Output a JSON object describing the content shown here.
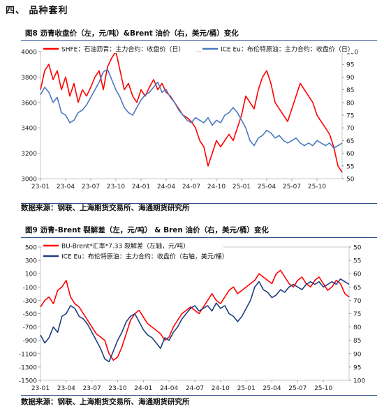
{
  "section_title": "四、 品种套利",
  "chart_data": [
    {
      "type": "line",
      "title": "图8  沥青收盘价（左，元/吨）&Brent 油价（右，美元/桶）变化",
      "source": "数据来源：钢联、上海期货交易所、海通期货研究所",
      "x_ticks": [
        "23-01",
        "23-04",
        "23-07",
        "23-10",
        "24-01",
        "24-04",
        "24-07",
        "24-10",
        "25-01",
        "25-04",
        "25-07",
        "25-10"
      ],
      "y_left": {
        "min": 3000,
        "max": 4000,
        "ticks": [
          3000,
          3200,
          3400,
          3600,
          3800,
          4000
        ]
      },
      "y_right": {
        "min": 50,
        "max": 100,
        "ticks": [
          50,
          55,
          60,
          65,
          70,
          75,
          80,
          85,
          90,
          95,
          100
        ]
      },
      "series": [
        {
          "name": "SHFE：石油沥青：主力合约：收盘价（日）",
          "axis": "left",
          "color": "#ff0000",
          "x": [
            0,
            0.5,
            1,
            1.5,
            2,
            2.5,
            3,
            3.5,
            4,
            4.5,
            5,
            5.5,
            6,
            6.5,
            7,
            7.5,
            8,
            8.5,
            9,
            9.5,
            10,
            10.5,
            11,
            11.5,
            12,
            12.5,
            13,
            13.5,
            14,
            14.5,
            15,
            15.5,
            16,
            16.5,
            17,
            17.5,
            18,
            18.5,
            19,
            19.5,
            20,
            20.5,
            21,
            21.5,
            22,
            22.5,
            23,
            23.5,
            24,
            24.5,
            25,
            25.5,
            26,
            26.5,
            27,
            27.5,
            28,
            28.5,
            29,
            29.5,
            30,
            30.5,
            31,
            31.5,
            32,
            32.5,
            33,
            33.5,
            34,
            34.5,
            35,
            35.5,
            36
          ],
          "values": [
            3700,
            3850,
            3900,
            3780,
            3850,
            3700,
            3800,
            3650,
            3750,
            3600,
            3700,
            3650,
            3720,
            3800,
            3850,
            3700,
            3880,
            3950,
            4000,
            3850,
            3700,
            3750,
            3650,
            3600,
            3700,
            3650,
            3720,
            3780,
            3700,
            3750,
            3680,
            3650,
            3600,
            3550,
            3500,
            3480,
            3450,
            3400,
            3300,
            3250,
            3100,
            3200,
            3300,
            3250,
            3300,
            3350,
            3300,
            3400,
            3500,
            3650,
            3600,
            3550,
            3700,
            3800,
            3850,
            3750,
            3600,
            3550,
            3500,
            3450,
            3550,
            3650,
            3750,
            3700,
            3650,
            3600,
            3500,
            3450,
            3400,
            3350,
            3250,
            3100,
            3050
          ]
        },
        {
          "name": "ICE Eu：布伦特原油：主力合约：收盘价（日）",
          "axis": "right",
          "color": "#4a78c0",
          "x": [
            0,
            0.5,
            1,
            1.5,
            2,
            2.5,
            3,
            3.5,
            4,
            4.5,
            5,
            5.5,
            6,
            6.5,
            7,
            7.5,
            8,
            8.5,
            9,
            9.5,
            10,
            10.5,
            11,
            11.5,
            12,
            12.5,
            13,
            13.5,
            14,
            14.5,
            15,
            15.5,
            16,
            16.5,
            17,
            17.5,
            18,
            18.5,
            19,
            19.5,
            20,
            20.5,
            21,
            21.5,
            22,
            22.5,
            23,
            23.5,
            24,
            24.5,
            25,
            25.5,
            26,
            26.5,
            27,
            27.5,
            28,
            28.5,
            29,
            29.5,
            30,
            30.5,
            31,
            31.5,
            32,
            32.5,
            33,
            33.5,
            34,
            34.5,
            35,
            35.5,
            36
          ],
          "values": [
            83,
            86,
            84,
            80,
            82,
            76,
            75,
            72,
            73,
            76,
            77,
            79,
            82,
            85,
            88,
            92,
            93,
            89,
            85,
            82,
            78,
            76,
            75,
            78,
            81,
            83,
            84,
            86,
            88,
            84,
            85,
            82,
            80,
            77,
            75,
            73,
            72,
            74,
            73,
            72,
            74,
            71,
            73,
            72,
            75,
            76,
            78,
            76,
            73,
            70,
            65,
            63,
            66,
            67,
            69,
            68,
            66,
            67,
            65,
            64,
            65,
            66,
            64,
            63,
            64,
            63,
            65,
            64,
            63,
            64,
            62,
            63,
            64
          ]
        }
      ]
    },
    {
      "type": "line",
      "title": "图9  沥青-Brent 裂解差（左，元/吨） & Bren 油价（右，美元/桶）变化",
      "source": "数据来源：钢联、上海期货交易所、海通期货研究所",
      "x_ticks": [
        "23-01",
        "23-04",
        "23-07",
        "23-10",
        "24-01",
        "24-04",
        "24-07",
        "24-10",
        "25-01",
        "25-04",
        "25-07",
        "25-10"
      ],
      "y_left": {
        "min": -1500,
        "max": 500,
        "ticks": [
          -1500,
          -1300,
          -1100,
          -900,
          -700,
          -500,
          -300,
          -100,
          100,
          300,
          500
        ]
      },
      "y_right": {
        "min": 50,
        "max": 100,
        "ticks": [
          50,
          55,
          60,
          65,
          70,
          75,
          80,
          85,
          90,
          95,
          100
        ],
        "reversed": true
      },
      "series": [
        {
          "name": "BU-Brent*汇率*7.33 裂解差（左轴，元/吨）",
          "axis": "left",
          "color": "#ff0000",
          "x": [
            0,
            0.5,
            1,
            1.5,
            2,
            2.5,
            3,
            3.5,
            4,
            4.5,
            5,
            5.5,
            6,
            6.5,
            7,
            7.5,
            8,
            8.5,
            9,
            9.5,
            10,
            10.5,
            11,
            11.5,
            12,
            12.5,
            13,
            13.5,
            14,
            14.5,
            15,
            15.5,
            16,
            16.5,
            17,
            17.5,
            18,
            18.5,
            19,
            19.5,
            20,
            20.5,
            21,
            21.5,
            22,
            22.5,
            23,
            23.5,
            24,
            24.5,
            25,
            25.5,
            26,
            26.5,
            27,
            27.5,
            28,
            28.5,
            29,
            29.5,
            30,
            30.5,
            31,
            31.5,
            32,
            32.5,
            33,
            33.5,
            34,
            34.5,
            35,
            35.5,
            36
          ],
          "values": [
            -400,
            -300,
            -250,
            -350,
            -150,
            -100,
            0,
            -250,
            -350,
            -400,
            -500,
            -600,
            -700,
            -800,
            -850,
            -900,
            -1100,
            -1200,
            -1150,
            -1000,
            -800,
            -600,
            -500,
            -450,
            -550,
            -650,
            -700,
            -750,
            -800,
            -900,
            -850,
            -700,
            -600,
            -500,
            -450,
            -400,
            -450,
            -500,
            -400,
            -300,
            -200,
            -300,
            -350,
            -250,
            -150,
            -100,
            -200,
            -150,
            -100,
            -50,
            0,
            100,
            50,
            0,
            -50,
            100,
            150,
            50,
            -50,
            -100,
            0,
            50,
            -50,
            -100,
            0,
            50,
            -50,
            -150,
            -100,
            0,
            -50,
            -200,
            -250
          ]
        },
        {
          "name": "ICE Eu：布伦特原油：主力合约：收盘价（右轴，美元/桶）",
          "axis": "right",
          "color": "#1f3f7f",
          "x": [
            0,
            0.5,
            1,
            1.5,
            2,
            2.5,
            3,
            3.5,
            4,
            4.5,
            5,
            5.5,
            6,
            6.5,
            7,
            7.5,
            8,
            8.5,
            9,
            9.5,
            10,
            10.5,
            11,
            11.5,
            12,
            12.5,
            13,
            13.5,
            14,
            14.5,
            15,
            15.5,
            16,
            16.5,
            17,
            17.5,
            18,
            18.5,
            19,
            19.5,
            20,
            20.5,
            21,
            21.5,
            22,
            22.5,
            23,
            23.5,
            24,
            24.5,
            25,
            25.5,
            26,
            26.5,
            27,
            27.5,
            28,
            28.5,
            29,
            29.5,
            30,
            30.5,
            31,
            31.5,
            32,
            32.5,
            33,
            33.5,
            34,
            34.5,
            35,
            35.5,
            36
          ],
          "values": [
            83,
            86,
            84,
            80,
            82,
            76,
            75,
            72,
            73,
            76,
            77,
            79,
            82,
            85,
            88,
            92,
            93,
            89,
            85,
            82,
            78,
            76,
            75,
            78,
            81,
            83,
            84,
            86,
            88,
            84,
            85,
            82,
            80,
            77,
            75,
            73,
            72,
            74,
            73,
            72,
            74,
            71,
            73,
            72,
            75,
            76,
            78,
            76,
            73,
            70,
            65,
            63,
            66,
            67,
            69,
            68,
            66,
            67,
            65,
            64,
            65,
            66,
            64,
            63,
            64,
            63,
            65,
            64,
            63,
            64,
            62,
            63,
            64
          ]
        }
      ]
    }
  ]
}
